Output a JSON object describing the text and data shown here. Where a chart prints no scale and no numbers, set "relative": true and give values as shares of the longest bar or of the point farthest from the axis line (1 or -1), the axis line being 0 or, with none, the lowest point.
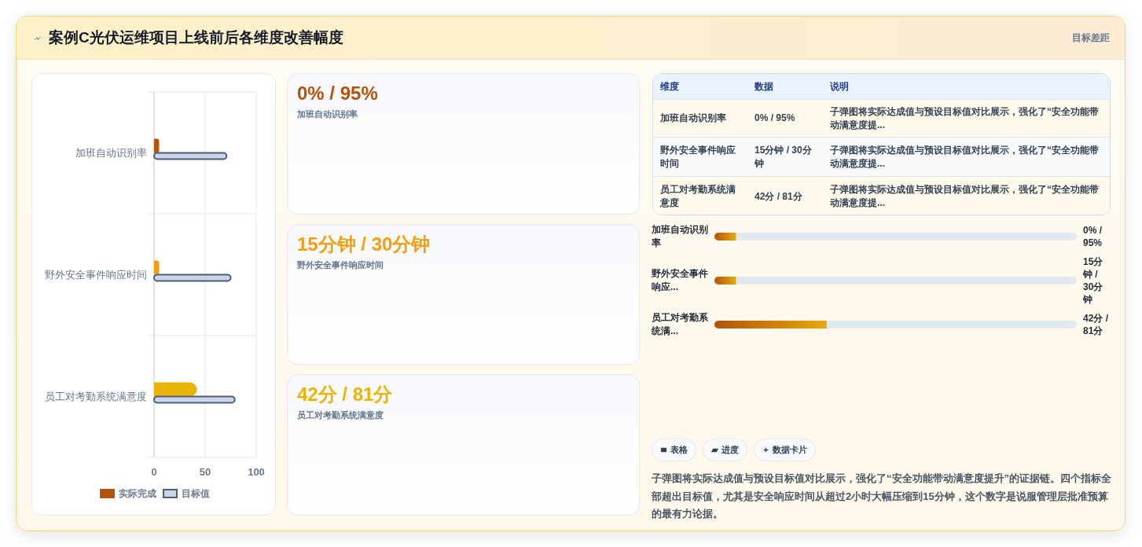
{
  "chart_data": [
    {
      "type": "other",
      "title": "案例C光伏运维项目上线前后各维度改善幅度",
      "annotations": [
        "目标差距"
      ]
    },
    {
      "type": "bar",
      "orientation": "horizontal",
      "categories": [
        "加班自动识别率",
        "野外安全事件响应时间",
        "员工对考勤系统满意度"
      ],
      "series": [
        {
          "name": "实际完成",
          "color": "#b45309",
          "colors": [
            "#b45309",
            "#f59e0b",
            "#eab308"
          ],
          "values": [
            5,
            5,
            42
          ]
        },
        {
          "name": "目标值",
          "color": "#c9d5e4",
          "values": [
            71,
            75,
            79
          ]
        }
      ],
      "xlim": [
        0,
        100
      ],
      "xticks": [
        0,
        50,
        100
      ],
      "grid": true,
      "legend": "bottom"
    },
    {
      "type": "other",
      "annotations": [
        "0% / 95%",
        "加班自动识别率",
        "15分钟 / 30分钟",
        "野外安全事件响应时间",
        "42分 / 81分",
        "员工对考勤系统满意度"
      ],
      "colors": [
        "#b45309",
        "#f59e0b",
        "#eab308"
      ]
    },
    {
      "type": "other",
      "annotations": [
        "维度",
        "数据",
        "说明",
        "加班自动识别率",
        "0% / 95%",
        "子弹图将实际达成值与预设目标值对比展示，强化了“安全功能带动满意度提...",
        "野外安全事件响应时间",
        "15分钟 / 30分钟",
        "子弹图将实际达成值与预设目标值对比展示，强化了“安全功能带动满意度提...",
        "员工对考勤系统满意度",
        "42分 / 81分",
        "子弹图将实际达成值与预设目标值对比展示，强化了“安全功能带动满意度提..."
      ]
    },
    {
      "type": "bar",
      "orientation": "horizontal",
      "stacked": true,
      "relative": true,
      "categories": [
        "加班自动识别率",
        "野外安全事件响应...",
        "员工对考勤系统满..."
      ],
      "series": [
        {
          "color": "#b45309",
          "values": [
            0.06,
            0.06,
            0.31
          ]
        },
        {
          "color": "#e2e8f0",
          "values": [
            0.94,
            0.94,
            0.69
          ]
        }
      ],
      "annotations": [
        "0% / 95%",
        "15分钟 / 30分钟",
        "42分 / 81分"
      ]
    },
    {
      "type": "other",
      "annotations": [
        "表格",
        "进度",
        "数据卡片",
        "子弹图将实际达成值与预设目标值对比展示，强化了“安全功能带动满意度提升”的证据链。四个指标全部超出目标值，尤其是安全响应时间从超过2小时大幅压缩到15分钟，这个数字是说服管理层批准预算的最有力论据。"
      ]
    }
  ]
}
